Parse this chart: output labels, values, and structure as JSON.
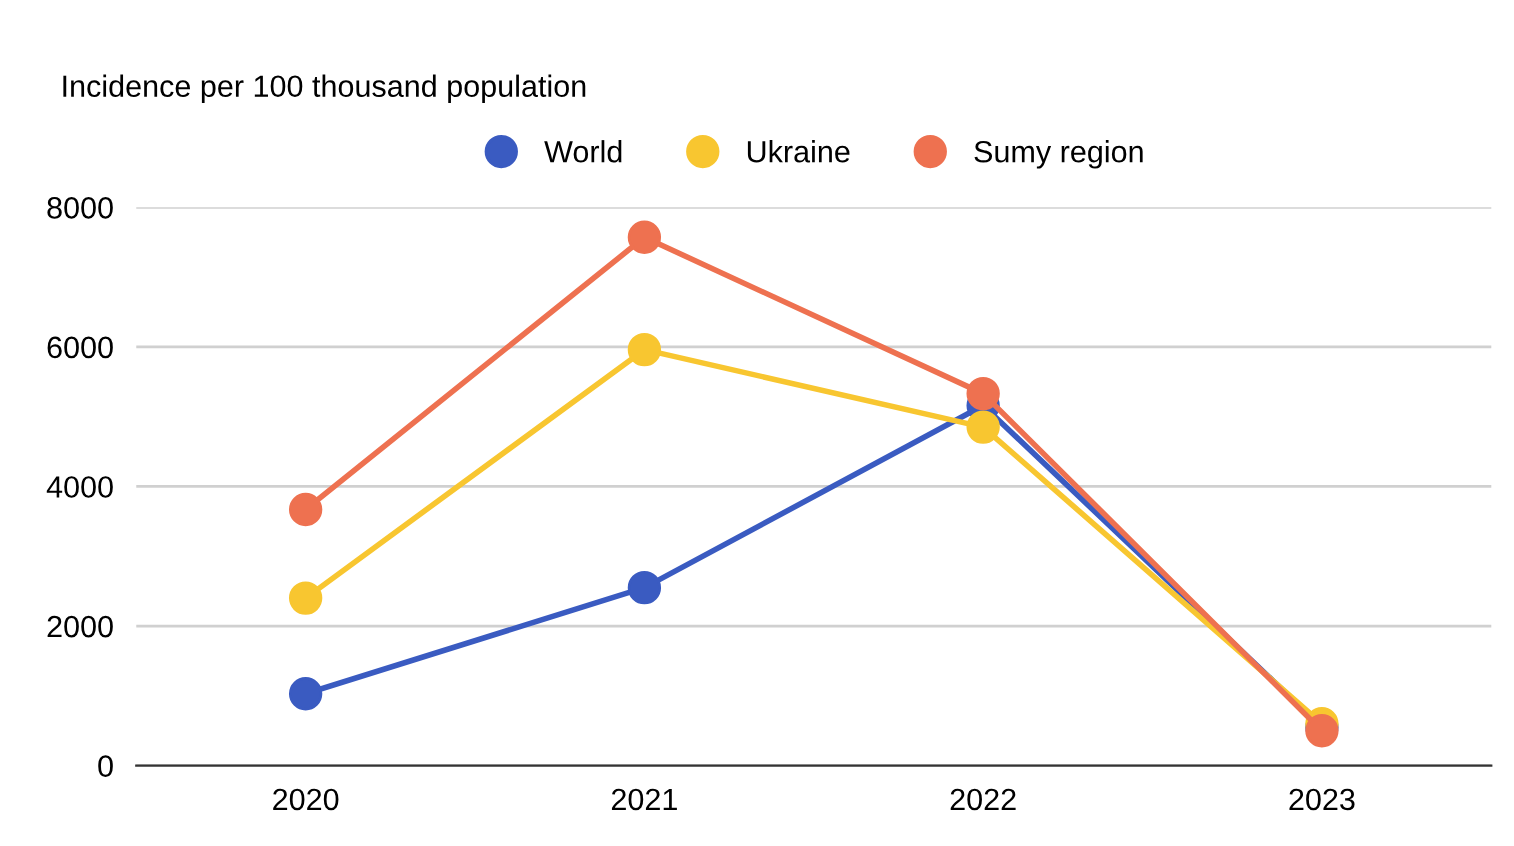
{
  "chart_data": {
    "type": "line",
    "ylabel": "Incidence per 100 thousand population",
    "categories": [
      "2020",
      "2021",
      "2022",
      "2023"
    ],
    "series": [
      {
        "name": "World",
        "color": "#3a5bc1",
        "values": [
          1030,
          2550,
          5160,
          550
        ]
      },
      {
        "name": "Ukraine",
        "color": "#f8c630",
        "values": [
          2400,
          5960,
          4850,
          600
        ]
      },
      {
        "name": "Sumy region",
        "color": "#ee7150",
        "values": [
          3670,
          7570,
          5330,
          500
        ]
      }
    ],
    "ylim": [
      0,
      8000
    ],
    "yticks": [
      0,
      2000,
      4000,
      6000,
      8000
    ],
    "grid": "y",
    "legend": "top",
    "marker": "circle",
    "line_style": "solid"
  }
}
